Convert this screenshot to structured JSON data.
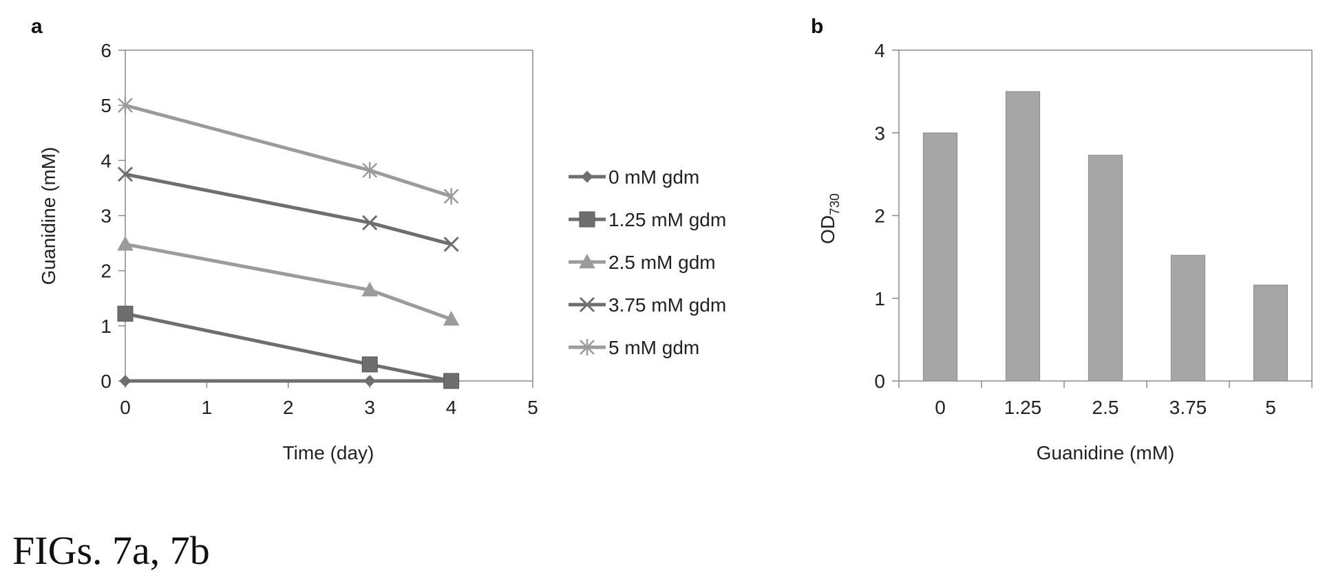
{
  "caption": "FIGs. 7a, 7b",
  "chart_data": [
    {
      "type": "line",
      "panel_label": "a",
      "xlabel": "Time (day)",
      "ylabel": "Guanidine (mM)",
      "xlim": [
        0,
        5
      ],
      "ylim": [
        0,
        6
      ],
      "x_ticks": [
        "0",
        "1",
        "2",
        "3",
        "4",
        "5"
      ],
      "y_ticks": [
        "0",
        "1",
        "2",
        "3",
        "4",
        "5",
        "6"
      ],
      "grid": false,
      "legend_position": "right",
      "series": [
        {
          "name": "0 mM gdm",
          "marker": "diamond",
          "color": "#6e6e6e",
          "points": [
            {
              "x": 0,
              "y": 0
            },
            {
              "x": 3,
              "y": 0
            },
            {
              "x": 4,
              "y": 0
            }
          ]
        },
        {
          "name": "1.25 mM gdm",
          "marker": "square",
          "color": "#6e6e6e",
          "points": [
            {
              "x": 0,
              "y": 1.22
            },
            {
              "x": 3,
              "y": 0.3
            },
            {
              "x": 4,
              "y": 0
            }
          ]
        },
        {
          "name": "2.5 mM gdm",
          "marker": "triangle",
          "color": "#9b9b9b",
          "points": [
            {
              "x": 0,
              "y": 2.48
            },
            {
              "x": 3,
              "y": 1.65
            },
            {
              "x": 4,
              "y": 1.12
            }
          ]
        },
        {
          "name": "3.75 mM gdm",
          "marker": "x",
          "color": "#6e6e6e",
          "points": [
            {
              "x": 0,
              "y": 3.75
            },
            {
              "x": 3,
              "y": 2.87
            },
            {
              "x": 4,
              "y": 2.48
            }
          ]
        },
        {
          "name": "5 mM gdm",
          "marker": "star",
          "color": "#9b9b9b",
          "points": [
            {
              "x": 0,
              "y": 5.0
            },
            {
              "x": 3,
              "y": 3.82
            },
            {
              "x": 4,
              "y": 3.35
            }
          ]
        }
      ]
    },
    {
      "type": "bar",
      "panel_label": "b",
      "xlabel": "Guanidine (mM)",
      "ylabel": "OD",
      "ylabel_subscript": "730",
      "categories": [
        "0",
        "1.25",
        "2.5",
        "3.75",
        "5"
      ],
      "values": [
        3.0,
        3.5,
        2.73,
        1.52,
        1.16
      ],
      "ylim": [
        0,
        4
      ],
      "y_ticks": [
        "0",
        "1",
        "2",
        "3",
        "4"
      ],
      "bar_color": "#a6a6a6",
      "grid": false
    }
  ]
}
